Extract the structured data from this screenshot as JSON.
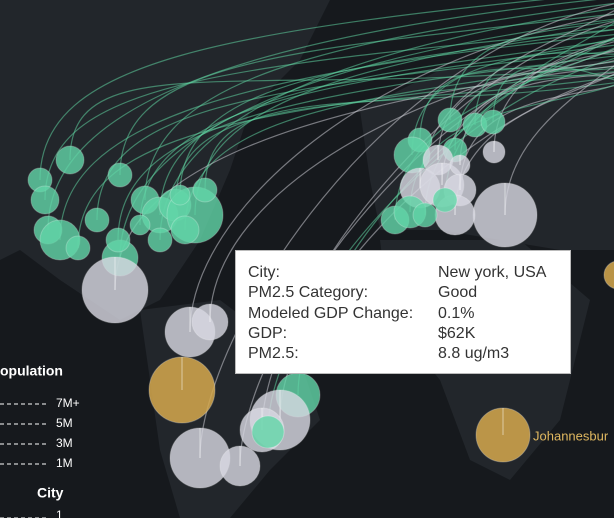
{
  "tooltip": {
    "rows": [
      {
        "label": "City:",
        "value": "New york, USA"
      },
      {
        "label": "PM2.5 Category:",
        "value": "Good"
      },
      {
        "label": "Modeled GDP Change:",
        "value": "0.1%"
      },
      {
        "label": "GDP:",
        "value": "$62K"
      },
      {
        "label": "PM2.5:",
        "value": "8.8 ug/m3"
      }
    ]
  },
  "legend": {
    "title": "opulation",
    "sizes": [
      "7M+",
      "5M",
      "3M",
      "1M"
    ],
    "city_title": "City",
    "city_items": [
      "1"
    ]
  },
  "map_labels": [
    "Johannesbur"
  ]
}
